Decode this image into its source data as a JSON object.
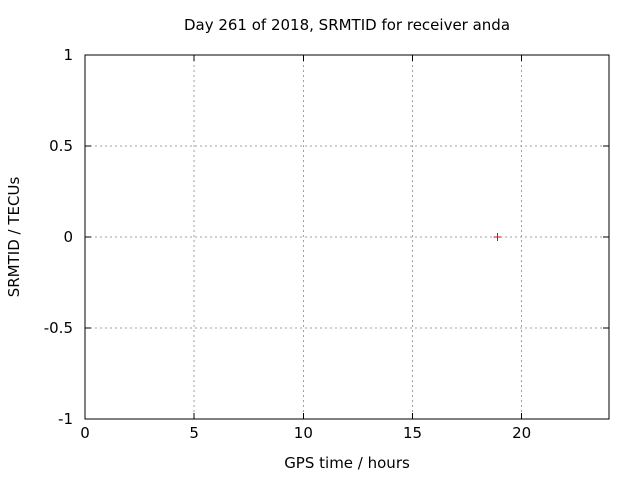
{
  "window": {
    "background": "#ffffff"
  },
  "chart_data": {
    "type": "scatter",
    "title": "Day 261 of 2018, SRMTID for receiver anda",
    "xlabel": "GPS time / hours",
    "ylabel": "SRMTID / TECUs",
    "xlim": [
      0,
      24
    ],
    "ylim": [
      -1,
      1
    ],
    "xticks": {
      "values": [
        0,
        5,
        10,
        15,
        20
      ],
      "labels": [
        "0",
        "5",
        "10",
        "15",
        "20"
      ]
    },
    "yticks": {
      "values": [
        -1,
        -0.5,
        0,
        0.5,
        1
      ],
      "labels": [
        "-1",
        "-0.5",
        "0",
        "0.5",
        "1"
      ]
    },
    "grid": true,
    "grid_style": "dotted",
    "legend_position": "none",
    "series": [
      {
        "name": "SRMTID",
        "marker": "plus",
        "color": "#ff0000",
        "points": [
          {
            "x": 18.9,
            "y": 0.0
          }
        ]
      }
    ],
    "colors": {
      "axis": "#000000",
      "grid": "#a0a0a0",
      "text": "#000000",
      "background": "#ffffff"
    }
  }
}
